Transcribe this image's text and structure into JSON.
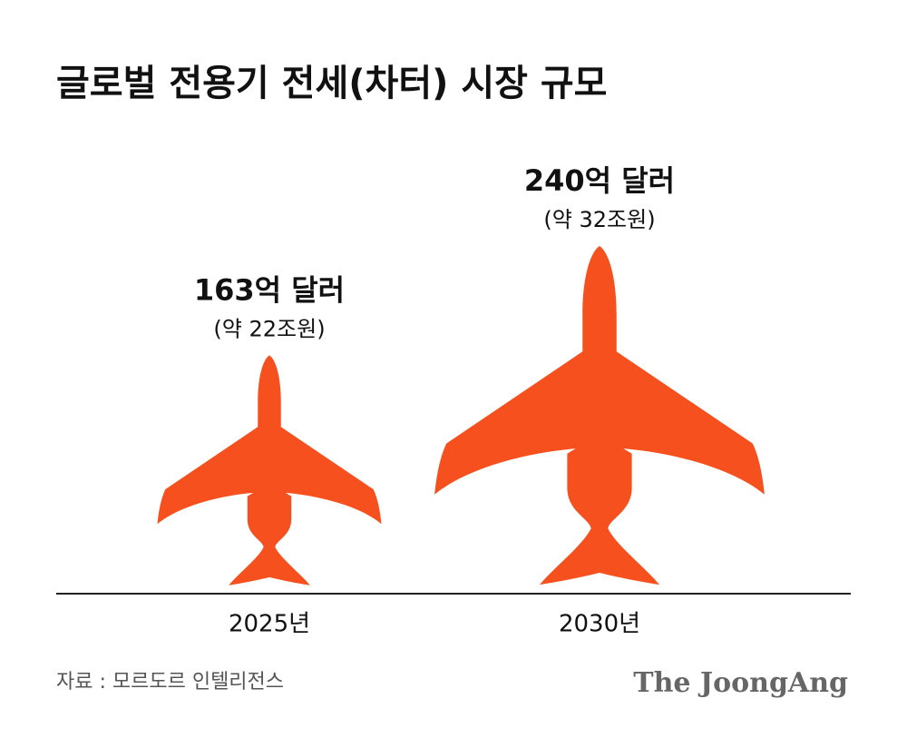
{
  "chart_data": {
    "type": "pictogram",
    "title": "글로벌 전용기 전세(차터) 시장 규모",
    "categories": [
      "2025년",
      "2030년"
    ],
    "values": [
      163,
      240
    ],
    "value_labels": [
      "163억 달러",
      "240억 달러"
    ],
    "notes": [
      "(약 22조원)",
      "(약 32조원)"
    ],
    "color": "#f5501e",
    "source": "자료 : 모르도르 인텔리전스",
    "brand": "The JoongAng"
  }
}
